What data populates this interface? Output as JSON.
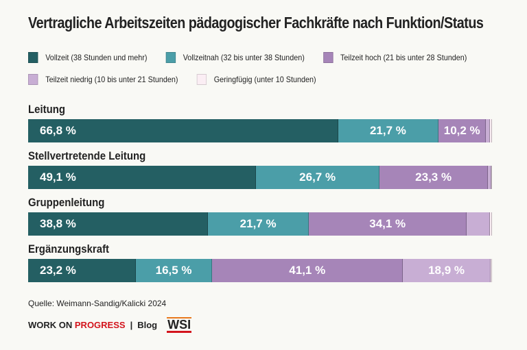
{
  "chart_data": {
    "type": "bar",
    "orientation": "horizontal",
    "stacked": true,
    "title": "Vertragliche Arbeitszeiten pädagogischer Fachkräfte nach Funktion/Status",
    "legend_position": "top",
    "series": [
      {
        "name": "Vollzeit (38 Stunden und mehr)",
        "color": "#245f63"
      },
      {
        "name": "Vollzeitnah (32 bis unter 38 Stunden)",
        "color": "#4b9ea8"
      },
      {
        "name": "Teilzeit hoch (21 bis unter 28 Stunden)",
        "color": "#a685b8"
      },
      {
        "name": "Teilzeit niedrig (10 bis unter 21 Stunden)",
        "color": "#c8aed4"
      },
      {
        "name": "Geringfügig (unter 10 Stunden)",
        "color": "#fbeef4"
      }
    ],
    "rows": [
      {
        "category": "Leitung",
        "values": [
          66.8,
          21.7,
          10.2,
          0.9,
          0.4
        ],
        "labels": [
          "66,8 %",
          "21,7 %",
          "10,2 %",
          "",
          ""
        ]
      },
      {
        "category": "Stellvertretende Leitung",
        "values": [
          49.1,
          26.7,
          23.3,
          0.7,
          0.2
        ],
        "labels": [
          "49,1 %",
          "26,7 %",
          "23,3 %",
          "",
          ""
        ]
      },
      {
        "category": "Gruppenleitung",
        "values": [
          38.8,
          21.7,
          34.1,
          4.9,
          0.5
        ],
        "labels": [
          "38,8 %",
          "21,7 %",
          "34,1 %",
          "",
          ""
        ]
      },
      {
        "category": "Ergänzungskraft",
        "values": [
          23.2,
          16.5,
          41.1,
          18.9,
          0.3
        ],
        "labels": [
          "23,2 %",
          "16,5 %",
          "41,1 %",
          "18,9 %",
          ""
        ]
      }
    ]
  },
  "source": "Quelle: Weimann-Sandig/Kalicki 2024",
  "footer": {
    "brand_a": "WORK ON ",
    "brand_b": "PROGRESS",
    "sep": "|",
    "blog": "Blog",
    "logo": "WSI"
  }
}
